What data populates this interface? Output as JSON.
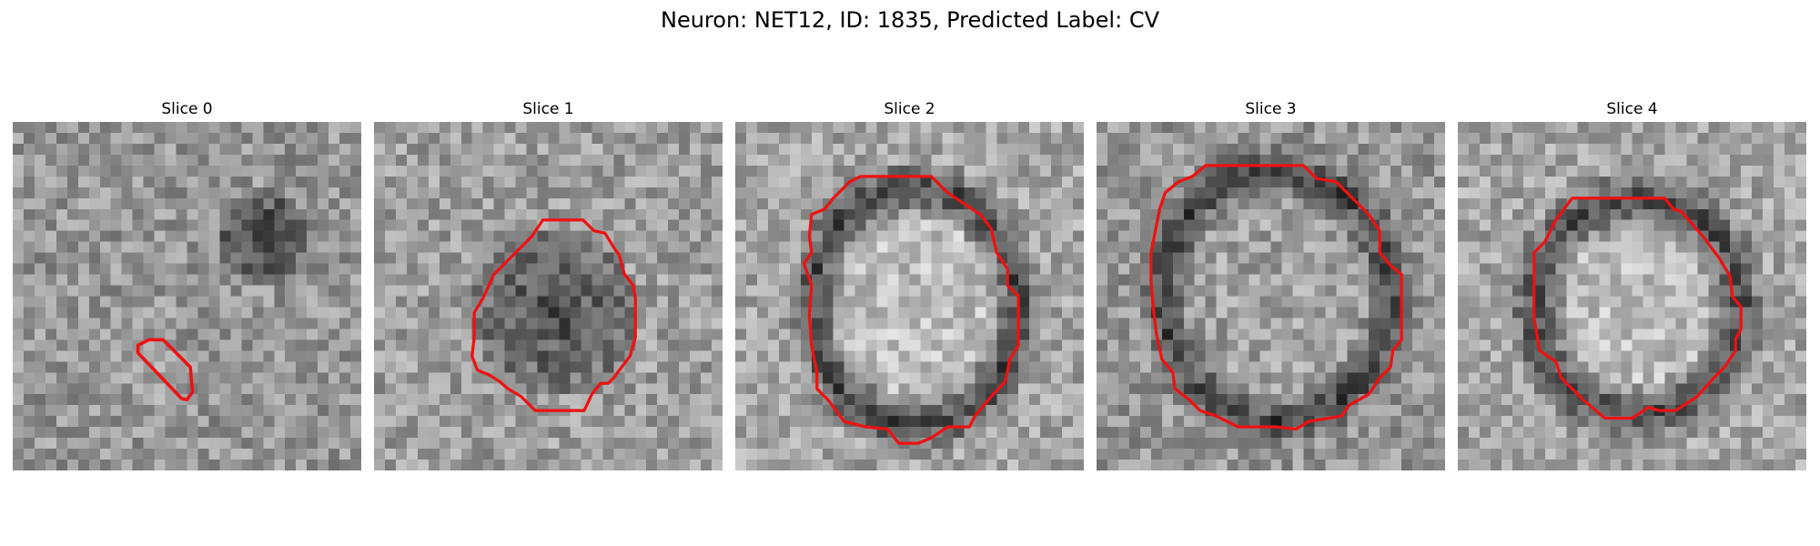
{
  "figure": {
    "title": "Neuron: NET12, ID: 1835, Predicted Label: CV"
  },
  "panels": [
    {
      "title": "Slice 0"
    },
    {
      "title": "Slice 1"
    },
    {
      "title": "Slice 2"
    },
    {
      "title": "Slice 3"
    },
    {
      "title": "Slice 4"
    }
  ],
  "image": {
    "colormap": "grayscale",
    "grid": "32x32 pixels"
  },
  "contour_color": "#ee1111"
}
